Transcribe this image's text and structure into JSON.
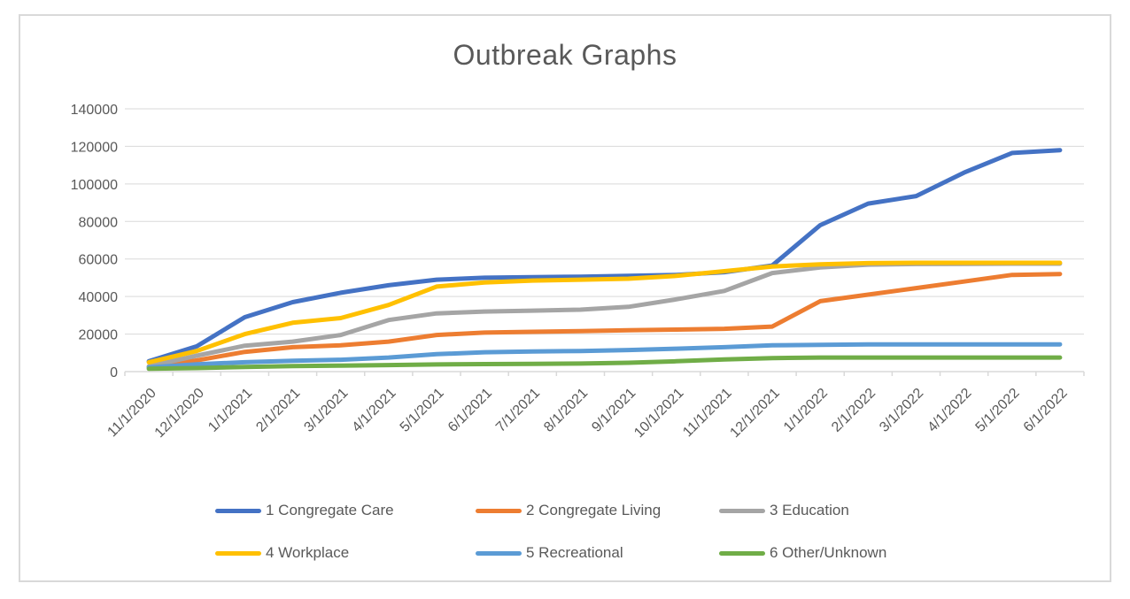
{
  "chart": {
    "y_axis": {
      "ticks": [
        "0",
        "20000",
        "40000",
        "60000",
        "80000",
        "100000",
        "120000",
        "140000"
      ],
      "min": 0,
      "max": 140000,
      "step": 20000
    }
  },
  "chart_data": {
    "type": "line",
    "title": "Outbreak Graphs",
    "xlabel": "",
    "ylabel": "",
    "ylim": [
      0,
      140000
    ],
    "y_tick_step": 20000,
    "grid": true,
    "legend_position": "bottom",
    "categories": [
      "11/1/2020",
      "12/1/2020",
      "1/1/2021",
      "2/1/2021",
      "3/1/2021",
      "4/1/2021",
      "5/1/2021",
      "6/1/2021",
      "7/1/2021",
      "8/1/2021",
      "9/1/2021",
      "10/1/2021",
      "11/1/2021",
      "12/1/2021",
      "1/1/2022",
      "2/1/2022",
      "3/1/2022",
      "4/1/2022",
      "5/1/2022",
      "6/1/2022"
    ],
    "series": [
      {
        "name": "1 Congregate Care",
        "color": "#4472C4",
        "values": [
          5500,
          13500,
          29000,
          37000,
          42000,
          46000,
          49000,
          50000,
          50300,
          50600,
          51000,
          51500,
          53000,
          56500,
          78000,
          89500,
          93500,
          106000,
          116500,
          118000
        ]
      },
      {
        "name": "2 Congregate Living",
        "color": "#ED7D31",
        "values": [
          2500,
          6000,
          10500,
          13000,
          14000,
          16000,
          19500,
          20800,
          21200,
          21600,
          22000,
          22400,
          22800,
          24000,
          37500,
          41000,
          44500,
          48000,
          51500,
          52000
        ]
      },
      {
        "name": "3 Education",
        "color": "#A5A5A5",
        "values": [
          2800,
          8500,
          13800,
          16000,
          19500,
          27500,
          31000,
          32000,
          32500,
          33000,
          34500,
          38500,
          43000,
          52500,
          55500,
          57000,
          57300,
          57400,
          57500,
          57500
        ]
      },
      {
        "name": "4 Workplace",
        "color": "#FFC000",
        "values": [
          5000,
          11000,
          20000,
          26000,
          28500,
          35500,
          45300,
          47500,
          48500,
          49000,
          49500,
          51000,
          53500,
          56000,
          57200,
          57800,
          58000,
          58000,
          58000,
          58000
        ]
      },
      {
        "name": "5 Recreational",
        "color": "#5B9BD5",
        "values": [
          2200,
          3900,
          5000,
          5800,
          6300,
          7500,
          9300,
          10300,
          10700,
          11000,
          11500,
          12200,
          13000,
          14000,
          14300,
          14500,
          14500,
          14500,
          14500,
          14500
        ]
      },
      {
        "name": "6 Other/Unknown",
        "color": "#70AD47",
        "values": [
          1500,
          1900,
          2500,
          2900,
          3200,
          3500,
          3800,
          4000,
          4100,
          4300,
          4700,
          5500,
          6500,
          7200,
          7500,
          7500,
          7500,
          7500,
          7500,
          7500
        ]
      }
    ],
    "colors": {
      "grid": "#D9D9D9",
      "axis": "#D9D9D9",
      "text": "#595959"
    }
  }
}
